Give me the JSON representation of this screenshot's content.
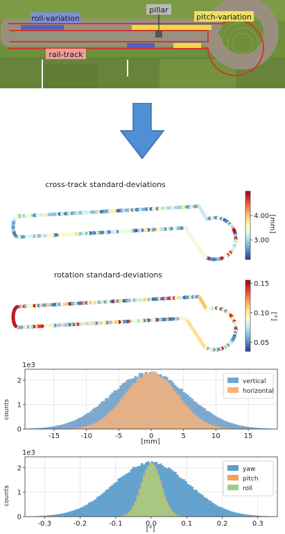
{
  "photo": {
    "labels": {
      "roll_variation": "roll-variation",
      "pillar": "pillar",
      "pitch_variation": "pitch-variation",
      "rail_track": "rail-track"
    },
    "colors": {
      "roll_label_bg": "#7f8fe8",
      "pillar_label_bg": "#bdbdbd",
      "pitch_label_bg": "#f4e36a",
      "rail_label_bg": "#f3a0a0",
      "grass": "#6f8f3a",
      "track_red": "#c83a30"
    }
  },
  "arrow": {
    "icon": "down-arrow-icon",
    "color": "#4f8fd4"
  },
  "chart_data": [
    {
      "type": "heatmap",
      "title": "cross-track standard-deviations",
      "colorbar": {
        "ticks": [
          3.0,
          4.0
        ],
        "tick_labels": [
          "3.00",
          "4.00"
        ],
        "label": "[mm]",
        "range": [
          2.2,
          5.0
        ]
      },
      "colormap": "RdYlBu_r"
    },
    {
      "type": "heatmap",
      "title": "rotation standard-deviations",
      "colorbar": {
        "ticks": [
          0.05,
          0.1,
          0.15
        ],
        "tick_labels": [
          "0.05",
          "0.10",
          "0.15"
        ],
        "label": "[°]",
        "range": [
          0.035,
          0.155
        ]
      },
      "colormap": "RdYlBu_r"
    },
    {
      "type": "bar",
      "subtype": "histogram",
      "xlabel": "[mm]",
      "ylabel": "counts",
      "y_multiplier": "1e3",
      "xlim": [
        -19.5,
        19.5
      ],
      "ylim": [
        0,
        2.45
      ],
      "xticks": [
        -15,
        -10,
        -5,
        0,
        5,
        10,
        15
      ],
      "yticks": [
        0,
        1,
        2
      ],
      "legend": "top-right",
      "grid": true,
      "series": [
        {
          "name": "vertical",
          "color": "#77a4cc",
          "mean": -0.3,
          "std": 6.0,
          "peak": 2.3
        },
        {
          "name": "horizontal",
          "color": "#f5b27a",
          "mean": 0.0,
          "std": 4.1,
          "peak": 2.32
        }
      ]
    },
    {
      "type": "bar",
      "subtype": "histogram",
      "xlabel": "[°]",
      "ylabel": "counts",
      "y_multiplier": "1e3",
      "xlim": [
        -0.355,
        0.355
      ],
      "ylim": [
        0,
        2.45
      ],
      "xticks": [
        -0.3,
        -0.2,
        -0.1,
        0.0,
        0.1,
        0.2,
        0.3
      ],
      "yticks": [
        0,
        1,
        2
      ],
      "legend": "top-right",
      "grid": true,
      "series": [
        {
          "name": "yaw",
          "color": "#5d9ecb",
          "mean": 0.0,
          "std": 0.105,
          "peak": 2.22
        },
        {
          "name": "pitch",
          "color": "#f6a05c",
          "mean": 0.0,
          "std": 0.028,
          "peak": 2.25
        },
        {
          "name": "roll",
          "color": "#9fce86",
          "mean": 0.0,
          "std": 0.027,
          "peak": 2.22
        }
      ]
    }
  ]
}
